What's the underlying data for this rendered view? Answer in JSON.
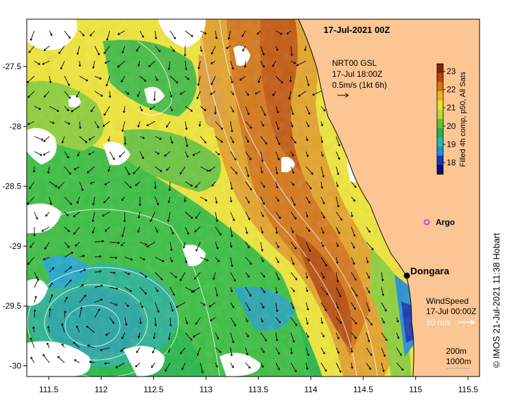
{
  "map": {
    "date_title": "17-Jul-2021 00Z",
    "current_legend": {
      "line1": "NRT00 GSL",
      "line2": "17-Jul 18:00Z",
      "line3": "0.5m/s (1kt 6h)"
    },
    "colorbar": {
      "label": "Filled 4h comp, p50, All Sats",
      "ticks": [
        "23",
        "22",
        "21",
        "20",
        "19",
        "18"
      ],
      "colors": [
        "#8a1f08",
        "#b4470c",
        "#d7760f",
        "#eab41b",
        "#e6e12a",
        "#b4d83a",
        "#5fc23c",
        "#24b250",
        "#23b8a8",
        "#1c8fd8",
        "#1737b8",
        "#0c0a7a"
      ]
    },
    "argo_label": "Argo",
    "argo_color": "#d040e8",
    "city_label": "Dongara",
    "wind_legend": {
      "line1": "WindSpeed",
      "line2": "17-Jul 00:00Z",
      "line3": "10 m/s"
    },
    "isobath_legend": {
      "line1": "200m",
      "line2": "1000m"
    },
    "x_ticks": [
      "111.5",
      "112",
      "112.5",
      "113",
      "113.5",
      "114",
      "114.5",
      "115",
      "115.5"
    ],
    "y_ticks": [
      "-27.5",
      "-28",
      "-28.5",
      "-29",
      "-29.5",
      "-30"
    ],
    "credit": "© IMOS 21-Jul-2021 11:38 Hobart",
    "land_color": "#fbc694"
  }
}
